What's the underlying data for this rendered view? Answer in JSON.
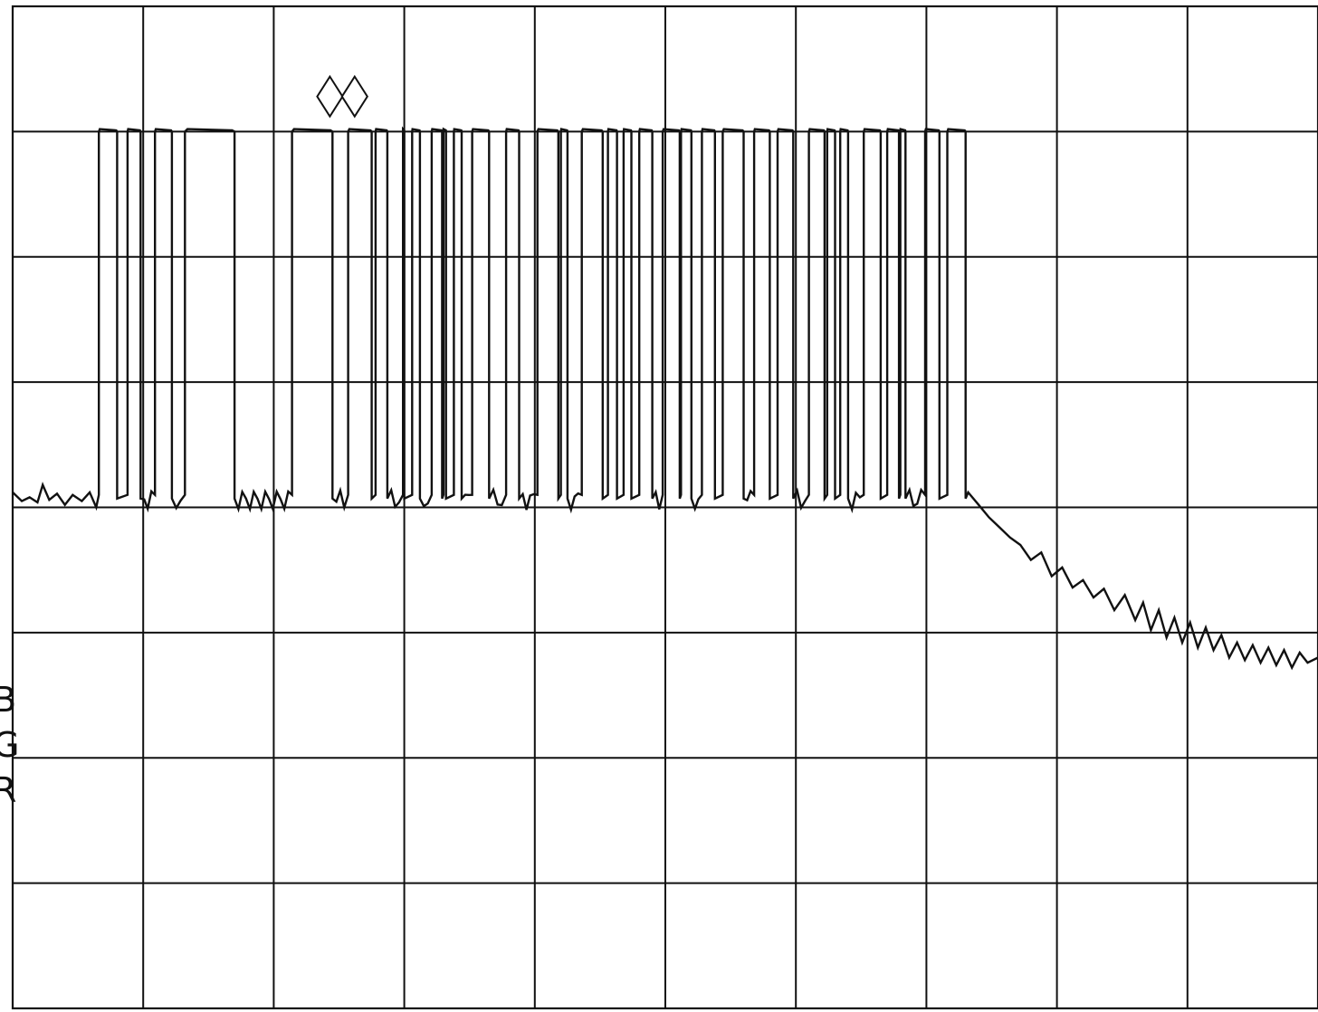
{
  "side_labels": [
    "B",
    "G",
    "R"
  ],
  "chart_data": {
    "type": "line",
    "title": "",
    "xlabel": "",
    "ylabel": "",
    "grid": true,
    "legend": "none",
    "xlim": [
      0,
      10
    ],
    "ylim": [
      0,
      8
    ],
    "grid_divisions": {
      "x": 10,
      "y": 8
    },
    "colors": {
      "background": "#ffffff",
      "grid": "#111111",
      "trace": "#111111"
    },
    "levels": {
      "high": 7.0,
      "low": 4.1,
      "floor_noise": 4.0
    },
    "pulses": [
      [
        0.66,
        0.8
      ],
      [
        0.88,
        0.98
      ],
      [
        1.09,
        1.22
      ],
      [
        1.32,
        1.7
      ],
      [
        2.14,
        2.45
      ],
      [
        2.57,
        2.75
      ],
      [
        2.78,
        2.87
      ],
      [
        2.99,
        3.0
      ],
      [
        3.06,
        3.12
      ],
      [
        3.21,
        3.29
      ],
      [
        3.3,
        3.32
      ],
      [
        3.38,
        3.44
      ],
      [
        3.52,
        3.65
      ],
      [
        3.78,
        3.88
      ],
      [
        4.02,
        4.18
      ],
      [
        4.2,
        4.25
      ],
      [
        4.36,
        4.52
      ],
      [
        4.56,
        4.63
      ],
      [
        4.68,
        4.74
      ],
      [
        4.8,
        4.9
      ],
      [
        4.98,
        5.11
      ],
      [
        5.12,
        5.2
      ],
      [
        5.28,
        5.38
      ],
      [
        5.44,
        5.6
      ],
      [
        5.68,
        5.8
      ],
      [
        5.86,
        5.98
      ],
      [
        6.1,
        6.22
      ],
      [
        6.24,
        6.3
      ],
      [
        6.34,
        6.4
      ],
      [
        6.52,
        6.65
      ],
      [
        6.7,
        6.79
      ],
      [
        6.8,
        6.84
      ],
      [
        6.99,
        7.1
      ],
      [
        7.16,
        7.3
      ]
    ],
    "series": [
      {
        "values": [
          [
            0.0,
            4.12
          ],
          [
            0.07,
            4.05
          ],
          [
            0.13,
            4.08
          ],
          [
            0.19,
            4.04
          ],
          [
            0.23,
            4.18
          ],
          [
            0.28,
            4.06
          ],
          [
            0.34,
            4.11
          ],
          [
            0.4,
            4.02
          ],
          [
            0.46,
            4.1
          ],
          [
            0.53,
            4.05
          ],
          [
            0.59,
            4.12
          ],
          [
            0.64,
            4.0
          ],
          [
            7.32,
            4.12
          ],
          [
            7.4,
            4.02
          ],
          [
            7.48,
            3.92
          ],
          [
            7.56,
            3.84
          ],
          [
            7.64,
            3.76
          ],
          [
            7.72,
            3.7
          ],
          [
            7.8,
            3.58
          ],
          [
            7.88,
            3.64
          ],
          [
            7.96,
            3.45
          ],
          [
            8.04,
            3.52
          ],
          [
            8.12,
            3.36
          ],
          [
            8.2,
            3.42
          ],
          [
            8.28,
            3.28
          ],
          [
            8.36,
            3.35
          ],
          [
            8.44,
            3.18
          ],
          [
            8.52,
            3.3
          ],
          [
            8.6,
            3.1
          ],
          [
            8.66,
            3.24
          ],
          [
            8.72,
            3.02
          ],
          [
            8.78,
            3.18
          ],
          [
            8.84,
            2.96
          ],
          [
            8.9,
            3.12
          ],
          [
            8.96,
            2.92
          ],
          [
            9.02,
            3.08
          ],
          [
            9.08,
            2.88
          ],
          [
            9.14,
            3.04
          ],
          [
            9.2,
            2.86
          ],
          [
            9.26,
            2.98
          ],
          [
            9.32,
            2.8
          ],
          [
            9.38,
            2.92
          ],
          [
            9.44,
            2.78
          ],
          [
            9.5,
            2.9
          ],
          [
            9.56,
            2.76
          ],
          [
            9.62,
            2.88
          ],
          [
            9.68,
            2.74
          ],
          [
            9.74,
            2.86
          ],
          [
            9.8,
            2.72
          ],
          [
            9.86,
            2.84
          ],
          [
            9.92,
            2.76
          ],
          [
            10.0,
            2.8
          ]
        ]
      }
    ],
    "markers": [
      {
        "x": 2.43,
        "y": 7.28,
        "shape": "diamond"
      },
      {
        "x": 2.62,
        "y": 7.28,
        "shape": "diamond"
      }
    ]
  }
}
